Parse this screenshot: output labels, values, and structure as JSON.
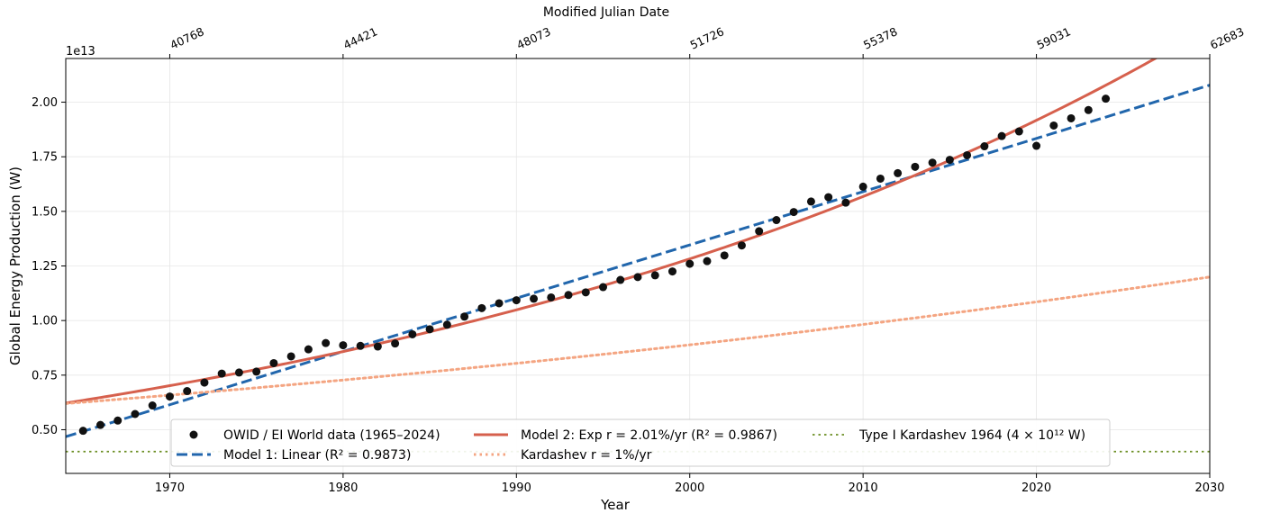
{
  "chart_data": {
    "type": "scatter",
    "xlabel": "Year",
    "ylabel": "Global Energy Production  (W)",
    "top_axis_label": "Modified Julian Date",
    "y_scale_label": "1e13",
    "xlim": [
      1964,
      2030
    ],
    "ylim": [
      0.3,
      2.2
    ],
    "y_unit_multiplier": 10000000000000.0,
    "grid": true,
    "legend_position": "lower center",
    "x_ticks": [
      1970,
      1980,
      1990,
      2000,
      2010,
      2020,
      2030
    ],
    "y_ticks": [
      0.5,
      0.75,
      1.0,
      1.25,
      1.5,
      1.75,
      2.0
    ],
    "y_tick_labels": [
      "0.50",
      "0.75",
      "1.00",
      "1.25",
      "1.50",
      "1.75",
      "2.00"
    ],
    "top_ticks": [
      {
        "year": 1970,
        "label": "40768"
      },
      {
        "year": 1980,
        "label": "44421"
      },
      {
        "year": 1990,
        "label": "48073"
      },
      {
        "year": 2000,
        "label": "51726"
      },
      {
        "year": 2010,
        "label": "55378"
      },
      {
        "year": 2020,
        "label": "59031"
      },
      {
        "year": 2030,
        "label": "62683"
      }
    ],
    "series": [
      {
        "name": "OWID / EI World data  (1965–2024)",
        "kind": "scatter",
        "color": "#111111",
        "x": [
          1965,
          1966,
          1967,
          1968,
          1969,
          1970,
          1971,
          1972,
          1973,
          1974,
          1975,
          1976,
          1977,
          1978,
          1979,
          1980,
          1981,
          1982,
          1983,
          1984,
          1985,
          1986,
          1987,
          1988,
          1989,
          1990,
          1991,
          1992,
          1993,
          1994,
          1995,
          1996,
          1997,
          1998,
          1999,
          2000,
          2001,
          2002,
          2003,
          2004,
          2005,
          2006,
          2007,
          2008,
          2009,
          2010,
          2011,
          2012,
          2013,
          2014,
          2015,
          2016,
          2017,
          2018,
          2019,
          2020,
          2021,
          2022,
          2023,
          2024
        ],
        "y": [
          0.495,
          0.522,
          0.542,
          0.572,
          0.611,
          0.652,
          0.677,
          0.716,
          0.757,
          0.762,
          0.766,
          0.805,
          0.836,
          0.868,
          0.897,
          0.887,
          0.884,
          0.881,
          0.895,
          0.937,
          0.96,
          0.981,
          1.018,
          1.057,
          1.079,
          1.093,
          1.1,
          1.106,
          1.117,
          1.129,
          1.153,
          1.186,
          1.199,
          1.207,
          1.225,
          1.26,
          1.272,
          1.298,
          1.344,
          1.409,
          1.46,
          1.497,
          1.545,
          1.565,
          1.54,
          1.613,
          1.65,
          1.675,
          1.704,
          1.723,
          1.736,
          1.757,
          1.798,
          1.845,
          1.866,
          1.8,
          1.893,
          1.926,
          1.964,
          2.016
        ]
      },
      {
        "name": "Model 1: Linear  (R² = 0.9873)",
        "kind": "line",
        "style": "dashed",
        "color": "#2166ac",
        "x": [
          1964,
          2030
        ],
        "y": [
          0.468,
          2.078
        ]
      },
      {
        "name": "Model 2: Exp  r = 2.01%/yr  (R² = 0.9867)",
        "kind": "exp",
        "style": "solid",
        "color": "#d6604d",
        "x0": 1964,
        "y0": 0.622,
        "rate": 0.0201,
        "x_end": 2030
      },
      {
        "name": "Kardashev r = 1%/yr",
        "kind": "exp",
        "style": "dotted",
        "color": "#f4a582",
        "x0": 1964,
        "y0": 0.62,
        "rate": 0.01,
        "x_end": 2030
      },
      {
        "name": "Type I  Kardashev 1964  (4 × 10¹² W)",
        "kind": "hline",
        "style": "dotted",
        "color": "#6b8e23",
        "y": 0.4
      }
    ]
  }
}
